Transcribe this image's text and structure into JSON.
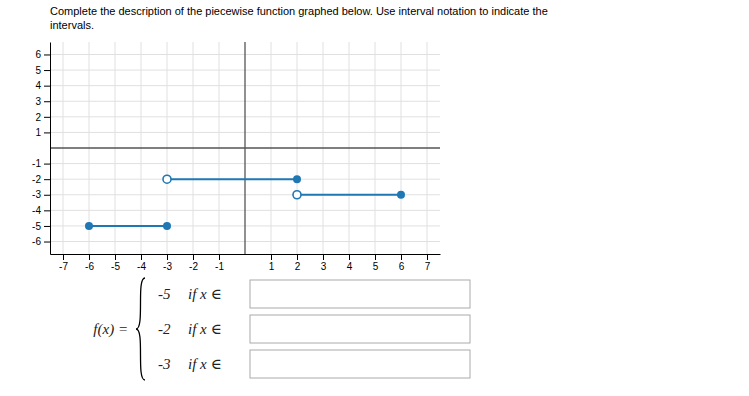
{
  "chart_data": {
    "type": "line",
    "title": [
      "Complete the description of the piecewise function graphed below. Use interval notation to indicate the",
      "intervals."
    ],
    "xlim": [
      -7.5,
      7.5
    ],
    "ylim": [
      -6.8,
      6.8
    ],
    "xticks": [
      -7,
      -6,
      -5,
      -4,
      -3,
      -2,
      -1,
      1,
      2,
      3,
      4,
      5,
      6,
      7
    ],
    "yticks": [
      -6,
      -5,
      -4,
      -3,
      -2,
      -1,
      1,
      2,
      3,
      4,
      5,
      6
    ],
    "grid": true,
    "series": [
      {
        "x": [
          -6,
          -3
        ],
        "values": [
          -5,
          -5
        ],
        "markers": [
          "filled",
          "filled"
        ]
      },
      {
        "x": [
          -3,
          2
        ],
        "values": [
          -2,
          -2
        ],
        "markers": [
          "open",
          "filled"
        ]
      },
      {
        "x": [
          2,
          6
        ],
        "values": [
          -3,
          -3
        ],
        "markers": [
          "open",
          "filled"
        ]
      }
    ],
    "annotations": {
      "label": "f(x) =",
      "pieces": [
        {
          "value": "-5",
          "label": "if x ∈"
        },
        {
          "value": "-2",
          "label": "if x ∈"
        },
        {
          "value": "-3",
          "label": "if x ∈"
        }
      ]
    }
  }
}
